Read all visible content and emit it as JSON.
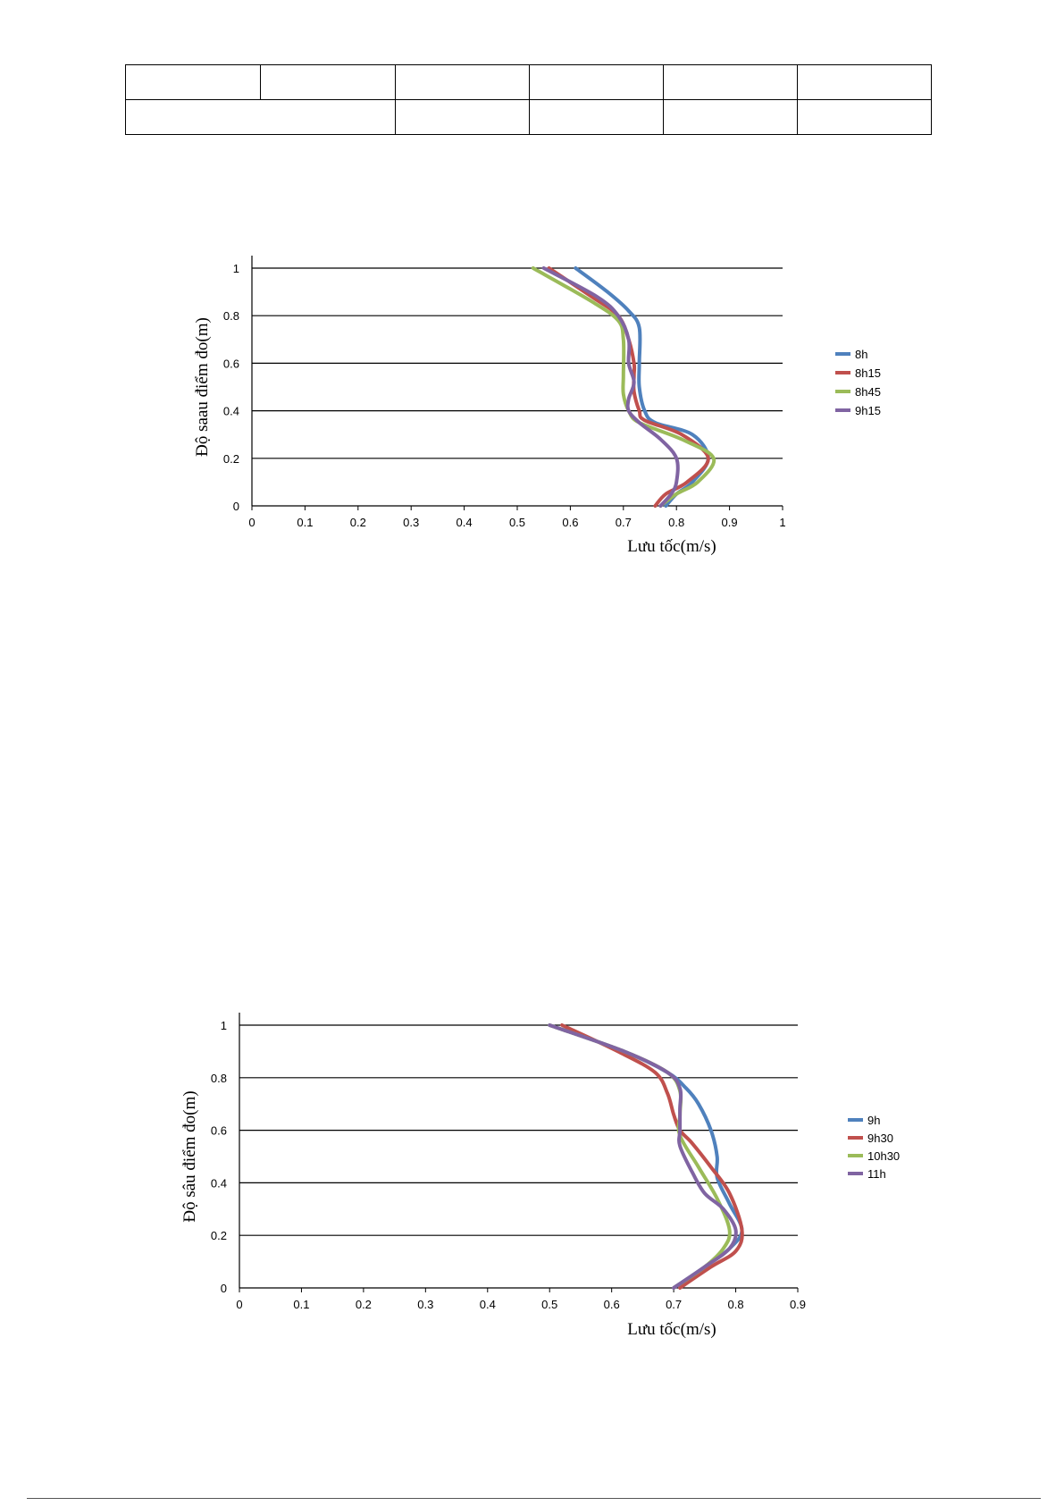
{
  "table": {
    "rows": 2
  },
  "chart_data": [
    {
      "type": "line",
      "title": "",
      "xlabel": "Lưu tốc(m/s)",
      "ylabel": "Độ saau điểm đo(m)",
      "xlim": [
        0,
        1
      ],
      "ylim": [
        0,
        1
      ],
      "x_ticks": [
        "0",
        "0.1",
        "0.2",
        "0.3",
        "0.4",
        "0.5",
        "0.6",
        "0.7",
        "0.8",
        "0.9",
        "1"
      ],
      "y_ticks": [
        "0",
        "0.2",
        "0.4",
        "0.6",
        "0.8",
        "1"
      ],
      "grid": "horizontal",
      "legend_position": "right",
      "series": [
        {
          "name": "8h",
          "color": "#4f81bd",
          "points": [
            [
              0.78,
              0
            ],
            [
              0.8,
              0.05
            ],
            [
              0.83,
              0.1
            ],
            [
              0.86,
              0.2
            ],
            [
              0.83,
              0.3
            ],
            [
              0.76,
              0.35
            ],
            [
              0.74,
              0.4
            ],
            [
              0.73,
              0.5
            ],
            [
              0.73,
              0.6
            ],
            [
              0.73,
              0.75
            ],
            [
              0.71,
              0.82
            ],
            [
              0.67,
              0.9
            ],
            [
              0.61,
              1.0
            ]
          ]
        },
        {
          "name": "8h15",
          "color": "#c0504d",
          "points": [
            [
              0.76,
              0
            ],
            [
              0.78,
              0.05
            ],
            [
              0.82,
              0.1
            ],
            [
              0.86,
              0.2
            ],
            [
              0.81,
              0.3
            ],
            [
              0.74,
              0.36
            ],
            [
              0.73,
              0.4
            ],
            [
              0.72,
              0.48
            ],
            [
              0.72,
              0.55
            ],
            [
              0.72,
              0.6
            ],
            [
              0.71,
              0.7
            ],
            [
              0.69,
              0.8
            ],
            [
              0.64,
              0.88
            ],
            [
              0.56,
              1.0
            ]
          ]
        },
        {
          "name": "8h45",
          "color": "#9bbb59",
          "points": [
            [
              0.77,
              0
            ],
            [
              0.8,
              0.05
            ],
            [
              0.84,
              0.1
            ],
            [
              0.87,
              0.2
            ],
            [
              0.81,
              0.28
            ],
            [
              0.73,
              0.35
            ],
            [
              0.71,
              0.4
            ],
            [
              0.7,
              0.47
            ],
            [
              0.7,
              0.55
            ],
            [
              0.7,
              0.7
            ],
            [
              0.69,
              0.78
            ],
            [
              0.64,
              0.86
            ],
            [
              0.53,
              1.0
            ]
          ]
        },
        {
          "name": "9h15",
          "color": "#8064a2",
          "points": [
            [
              0.77,
              0
            ],
            [
              0.79,
              0.05
            ],
            [
              0.8,
              0.1
            ],
            [
              0.8,
              0.2
            ],
            [
              0.77,
              0.28
            ],
            [
              0.73,
              0.35
            ],
            [
              0.71,
              0.4
            ],
            [
              0.71,
              0.45
            ],
            [
              0.72,
              0.52
            ],
            [
              0.71,
              0.6
            ],
            [
              0.71,
              0.7
            ],
            [
              0.69,
              0.8
            ],
            [
              0.65,
              0.88
            ],
            [
              0.55,
              1.0
            ]
          ]
        }
      ]
    },
    {
      "type": "line",
      "title": "",
      "xlabel": "Lưu tốc(m/s)",
      "ylabel": "Độ sâu điểm đo(m)",
      "xlim": [
        0,
        0.9
      ],
      "ylim": [
        0,
        1
      ],
      "x_ticks": [
        "0",
        "0.1",
        "0.2",
        "0.3",
        "0.4",
        "0.5",
        "0.6",
        "0.7",
        "0.8",
        "0.9"
      ],
      "y_ticks": [
        "0",
        "0.2",
        "0.4",
        "0.6",
        "0.8",
        "1"
      ],
      "grid": "horizontal",
      "legend_position": "right",
      "series": [
        {
          "name": "9h",
          "color": "#4f81bd",
          "points": [
            [
              0.7,
              0
            ],
            [
              0.75,
              0.08
            ],
            [
              0.79,
              0.15
            ],
            [
              0.81,
              0.22
            ],
            [
              0.79,
              0.32
            ],
            [
              0.77,
              0.42
            ],
            [
              0.77,
              0.5
            ],
            [
              0.76,
              0.6
            ],
            [
              0.74,
              0.7
            ],
            [
              0.72,
              0.76
            ],
            [
              0.69,
              0.82
            ],
            [
              0.62,
              0.9
            ],
            [
              0.5,
              1.0
            ]
          ]
        },
        {
          "name": "9h30",
          "color": "#c0504d",
          "points": [
            [
              0.71,
              0
            ],
            [
              0.76,
              0.08
            ],
            [
              0.8,
              0.14
            ],
            [
              0.81,
              0.22
            ],
            [
              0.79,
              0.36
            ],
            [
              0.76,
              0.46
            ],
            [
              0.73,
              0.55
            ],
            [
              0.71,
              0.6
            ],
            [
              0.7,
              0.66
            ],
            [
              0.69,
              0.74
            ],
            [
              0.67,
              0.82
            ],
            [
              0.61,
              0.9
            ],
            [
              0.52,
              1.0
            ]
          ]
        },
        {
          "name": "10h30",
          "color": "#9bbb59",
          "points": [
            [
              0.7,
              0
            ],
            [
              0.75,
              0.08
            ],
            [
              0.78,
              0.15
            ],
            [
              0.79,
              0.22
            ],
            [
              0.77,
              0.34
            ],
            [
              0.74,
              0.46
            ],
            [
              0.71,
              0.58
            ],
            [
              0.71,
              0.66
            ],
            [
              0.71,
              0.75
            ],
            [
              0.69,
              0.82
            ],
            [
              0.62,
              0.9
            ],
            [
              0.5,
              1.0
            ]
          ]
        },
        {
          "name": "11h",
          "color": "#8064a2",
          "points": [
            [
              0.7,
              0
            ],
            [
              0.75,
              0.08
            ],
            [
              0.79,
              0.15
            ],
            [
              0.8,
              0.22
            ],
            [
              0.78,
              0.3
            ],
            [
              0.75,
              0.36
            ],
            [
              0.73,
              0.44
            ],
            [
              0.71,
              0.54
            ],
            [
              0.71,
              0.6
            ],
            [
              0.71,
              0.68
            ],
            [
              0.71,
              0.76
            ],
            [
              0.69,
              0.82
            ],
            [
              0.62,
              0.9
            ],
            [
              0.5,
              1.0
            ]
          ]
        }
      ]
    }
  ]
}
